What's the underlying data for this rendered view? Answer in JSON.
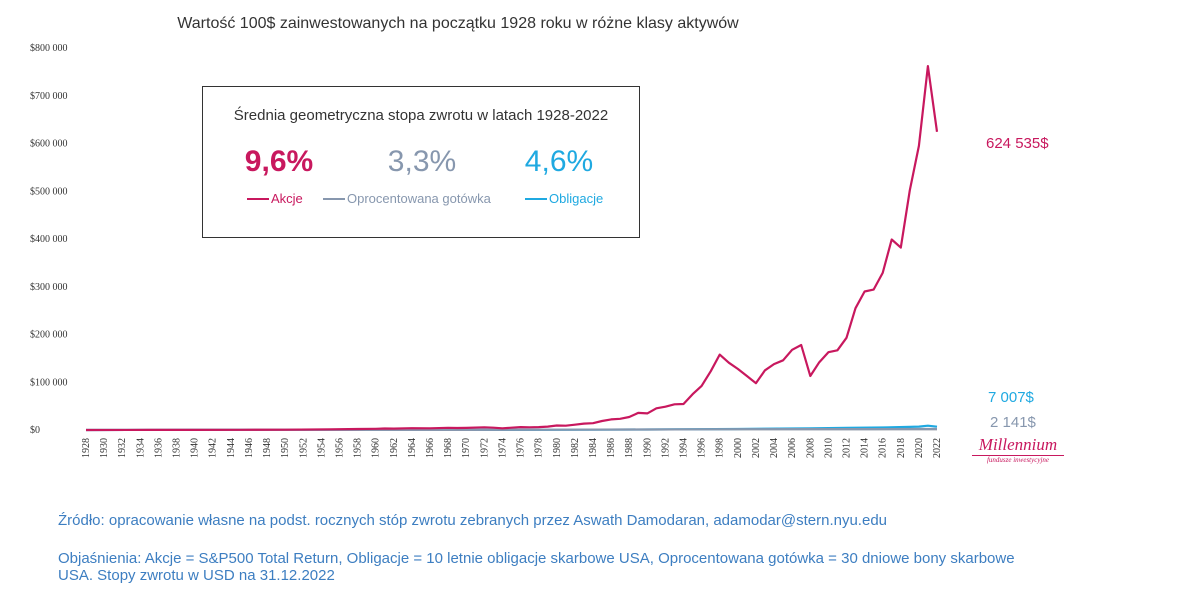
{
  "colors": {
    "stocks": "#c8185e",
    "cash": "#8797ae",
    "bonds": "#1fa9e1",
    "text": "#333333",
    "footnote": "#3d7ec1"
  },
  "chart_data": {
    "type": "line",
    "title": "Wartość 100$ zainwestowanych na początku 1928 roku w różne klasy aktywów",
    "xlabel": "",
    "ylabel": "",
    "xlim": [
      1928,
      2022
    ],
    "ylim": [
      0,
      800000
    ],
    "y_ticks": [
      "$0",
      "$100 000",
      "$200 000",
      "$300 000",
      "$400 000",
      "$500 000",
      "$600 000",
      "$700 000",
      "$800 000"
    ],
    "x_ticks": [
      "1928",
      "1930",
      "1932",
      "1934",
      "1936",
      "1938",
      "1940",
      "1942",
      "1944",
      "1946",
      "1948",
      "1950",
      "1952",
      "1954",
      "1956",
      "1958",
      "1960",
      "1962",
      "1964",
      "1966",
      "1968",
      "1970",
      "1972",
      "1974",
      "1976",
      "1978",
      "1980",
      "1982",
      "1984",
      "1986",
      "1988",
      "1990",
      "1992",
      "1994",
      "1996",
      "1998",
      "2000",
      "2002",
      "2004",
      "2006",
      "2008",
      "2010",
      "2012",
      "2014",
      "2016",
      "2018",
      "2020",
      "2022"
    ],
    "grid": false,
    "series": [
      {
        "name": "Akcje",
        "color": "#c8185e",
        "points": [
          [
            1928,
            100
          ],
          [
            1935,
            150
          ],
          [
            1940,
            200
          ],
          [
            1945,
            400
          ],
          [
            1950,
            700
          ],
          [
            1955,
            1500
          ],
          [
            1958,
            2000
          ],
          [
            1960,
            2500
          ],
          [
            1961,
            3200
          ],
          [
            1962,
            2900
          ],
          [
            1964,
            3800
          ],
          [
            1966,
            3600
          ],
          [
            1968,
            4600
          ],
          [
            1969,
            4200
          ],
          [
            1970,
            4400
          ],
          [
            1972,
            5700
          ],
          [
            1973,
            4900
          ],
          [
            1974,
            3600
          ],
          [
            1975,
            4900
          ],
          [
            1976,
            6100
          ],
          [
            1977,
            5700
          ],
          [
            1978,
            6100
          ],
          [
            1979,
            7200
          ],
          [
            1980,
            9500
          ],
          [
            1981,
            9000
          ],
          [
            1982,
            11000
          ],
          [
            1983,
            13500
          ],
          [
            1984,
            14300
          ],
          [
            1985,
            18800
          ],
          [
            1986,
            22300
          ],
          [
            1987,
            23500
          ],
          [
            1988,
            27300
          ],
          [
            1989,
            35900
          ],
          [
            1990,
            34800
          ],
          [
            1991,
            45500
          ],
          [
            1992,
            48900
          ],
          [
            1993,
            53800
          ],
          [
            1994,
            54500
          ],
          [
            1995,
            74900
          ],
          [
            1996,
            92300
          ],
          [
            1997,
            123000
          ],
          [
            1998,
            158000
          ],
          [
            1999,
            141000
          ],
          [
            2000,
            128000
          ],
          [
            2001,
            113000
          ],
          [
            2002,
            98000
          ],
          [
            2003,
            125000
          ],
          [
            2004,
            138000
          ],
          [
            2005,
            146000
          ],
          [
            2006,
            168000
          ],
          [
            2007,
            178000
          ],
          [
            2008,
            113000
          ],
          [
            2009,
            142000
          ],
          [
            2010,
            163000
          ],
          [
            2011,
            167000
          ],
          [
            2012,
            193000
          ],
          [
            2013,
            255000
          ],
          [
            2014,
            290000
          ],
          [
            2015,
            294000
          ],
          [
            2016,
            329000
          ],
          [
            2017,
            399000
          ],
          [
            2018,
            382000
          ],
          [
            2019,
            502000
          ],
          [
            2020,
            595000
          ],
          [
            2021,
            762000
          ],
          [
            2022,
            624535
          ]
        ]
      },
      {
        "name": "Oprocentowana gotówka",
        "color": "#8797ae",
        "points": [
          [
            1928,
            100
          ],
          [
            1940,
            110
          ],
          [
            1950,
            130
          ],
          [
            1960,
            180
          ],
          [
            1970,
            290
          ],
          [
            1980,
            540
          ],
          [
            1990,
            1120
          ],
          [
            2000,
            1580
          ],
          [
            2008,
            1910
          ],
          [
            2015,
            1930
          ],
          [
            2020,
            2050
          ],
          [
            2022,
            2141
          ]
        ]
      },
      {
        "name": "Obligacje",
        "color": "#1fa9e1",
        "points": [
          [
            1928,
            100
          ],
          [
            1940,
            180
          ],
          [
            1950,
            220
          ],
          [
            1960,
            250
          ],
          [
            1970,
            300
          ],
          [
            1980,
            410
          ],
          [
            1990,
            1050
          ],
          [
            2000,
            2100
          ],
          [
            2008,
            3500
          ],
          [
            2012,
            4400
          ],
          [
            2016,
            5200
          ],
          [
            2019,
            6500
          ],
          [
            2020,
            7100
          ],
          [
            2021,
            9000
          ],
          [
            2022,
            7007
          ]
        ]
      }
    ],
    "end_labels": [
      {
        "series": "Akcje",
        "text": "624 535$"
      },
      {
        "series": "Obligacje",
        "text": "7 007$"
      },
      {
        "series": "Oprocentowana gotówka",
        "text": "2 141$"
      }
    ]
  },
  "infobox": {
    "title": "Średnia geometryczna stopa zwrotu w latach 1928-2022",
    "stocks_rate": "9,6%",
    "cash_rate": "3,3%",
    "bonds_rate": "4,6%",
    "stocks_label": "Akcje",
    "cash_label": "Oprocentowana gotówka",
    "bonds_label": "Obligacje"
  },
  "logo": {
    "main": "Millennium",
    "sub": "fundusze inwestycyjne"
  },
  "footnotes": {
    "source": "Źródło: opracowanie własne na podst. rocznych stóp zwrotu zebranych przez Aswath Damodaran, adamodar@stern.nyu.edu",
    "explanations_line1": "Objaśnienia: Akcje = S&P500 Total Return, Obligacje = 10 letnie obligacje skarbowe USA, Oprocentowana gotówka = 30 dniowe bony skarbowe",
    "explanations_line2": "USA. Stopy zwrotu w USD na 31.12.2022"
  }
}
